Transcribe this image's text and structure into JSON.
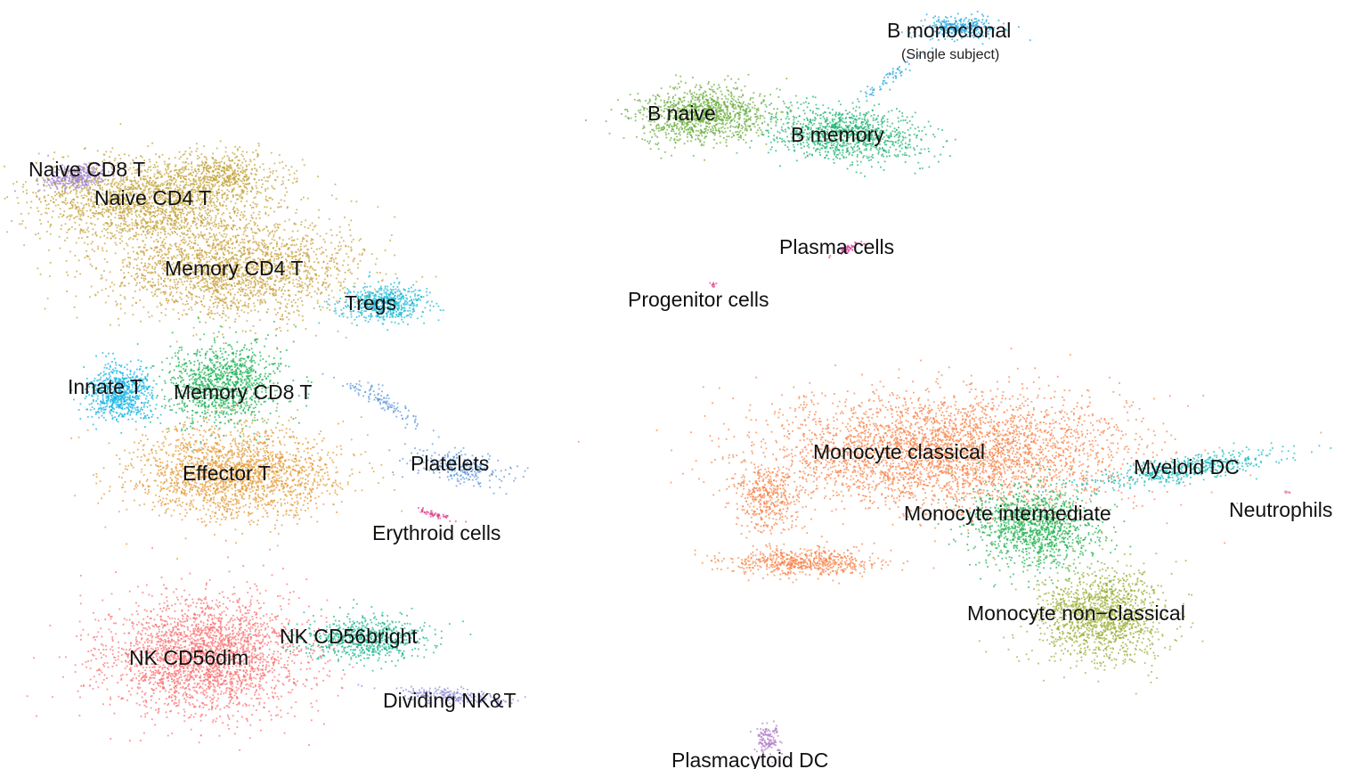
{
  "chart_data": {
    "type": "scatter",
    "title": "",
    "xlabel": "",
    "ylabel": "",
    "grid": false,
    "legend": "none",
    "clusters": [
      {
        "label": "Naive CD8 T",
        "color": "#9B7FC8"
      },
      {
        "label": "Naive CD4 T",
        "color": "#C3A33A"
      },
      {
        "label": "Memory CD4 T",
        "color": "#C8A03C"
      },
      {
        "label": "Tregs",
        "color": "#19B8D6"
      },
      {
        "label": "Innate T",
        "color": "#12B1E2"
      },
      {
        "label": "Memory CD8 T",
        "color": "#1DB155"
      },
      {
        "label": "Effector T",
        "color": "#E39A36"
      },
      {
        "label": "Platelets",
        "color": "#5E95D8"
      },
      {
        "label": "Erythroid cells",
        "color": "#E0468E"
      },
      {
        "label": "NK CD56dim",
        "color": "#F87171"
      },
      {
        "label": "NK CD56bright",
        "color": "#1CB68C"
      },
      {
        "label": "Dividing NK&T",
        "color": "#8F8FD9"
      },
      {
        "label": "B naive",
        "color": "#6AAC3E"
      },
      {
        "label": "B memory",
        "color": "#1DB171"
      },
      {
        "label": "B monoclonal",
        "sublabel": "(Single subject)",
        "color": "#22A7E0"
      },
      {
        "label": "Plasma cells",
        "color": "#D6449E"
      },
      {
        "label": "Progenitor cells",
        "color": "#E0468E"
      },
      {
        "label": "Monocyte classical",
        "color": "#F6844A"
      },
      {
        "label": "Monocyte intermediate",
        "color": "#22B150"
      },
      {
        "label": "Monocyte non−classical",
        "color": "#9AAE35"
      },
      {
        "label": "Myeloid DC",
        "color": "#1BB9B9"
      },
      {
        "label": "Neutrophils",
        "color": "#E57AA3"
      },
      {
        "label": "Plasmacytoid DC",
        "color": "#B27AC8"
      }
    ]
  }
}
